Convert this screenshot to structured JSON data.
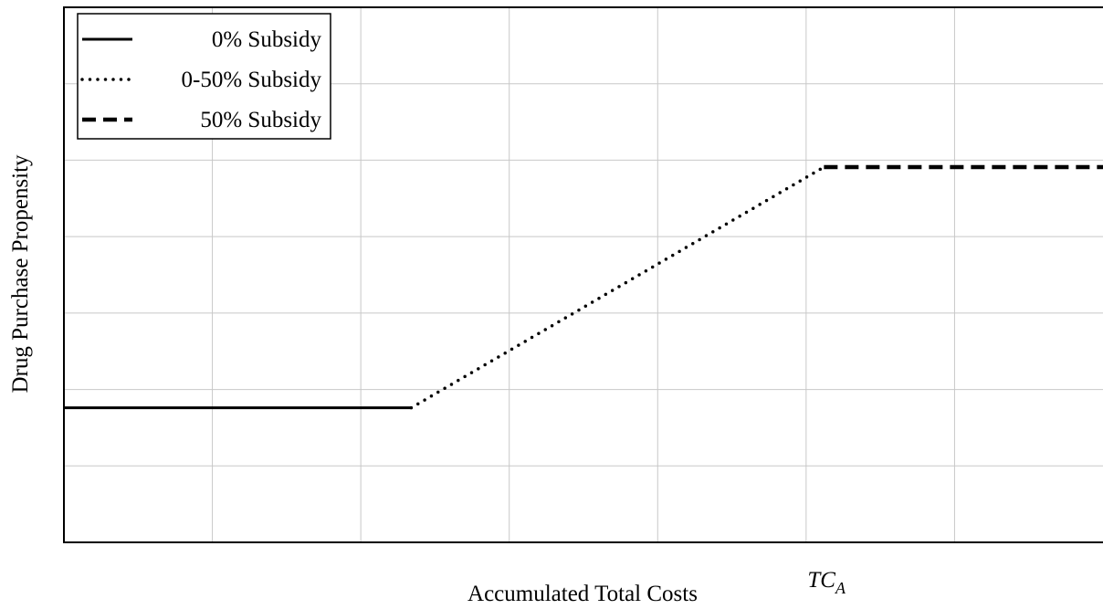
{
  "chart_data": {
    "type": "line",
    "xlabel": "Accumulated Total Costs",
    "ylabel": "Drug Purchase Propensity",
    "annotation": {
      "text": "TC",
      "subscript": "A",
      "x": 5.12
    },
    "xlim": [
      0,
      7
    ],
    "ylim": [
      0,
      7
    ],
    "xticks": [
      1,
      2,
      3,
      4,
      5,
      6
    ],
    "yticks": [
      1,
      2,
      3,
      4,
      5,
      6
    ],
    "grid": true,
    "legend": "upper left",
    "series": [
      {
        "name": "0% Subsidy",
        "color": "#000000",
        "style": "solid",
        "x": [
          0,
          2.34
        ],
        "values": [
          1.76,
          1.76
        ]
      },
      {
        "name": "0-50% Subsidy",
        "color": "#000000",
        "style": "dotted",
        "x": [
          2.34,
          5.12
        ],
        "values": [
          1.76,
          4.91
        ]
      },
      {
        "name": "50% Subsidy",
        "color": "#000000",
        "style": "dashed",
        "x": [
          5.12,
          7
        ],
        "values": [
          4.91,
          4.91
        ]
      }
    ]
  }
}
